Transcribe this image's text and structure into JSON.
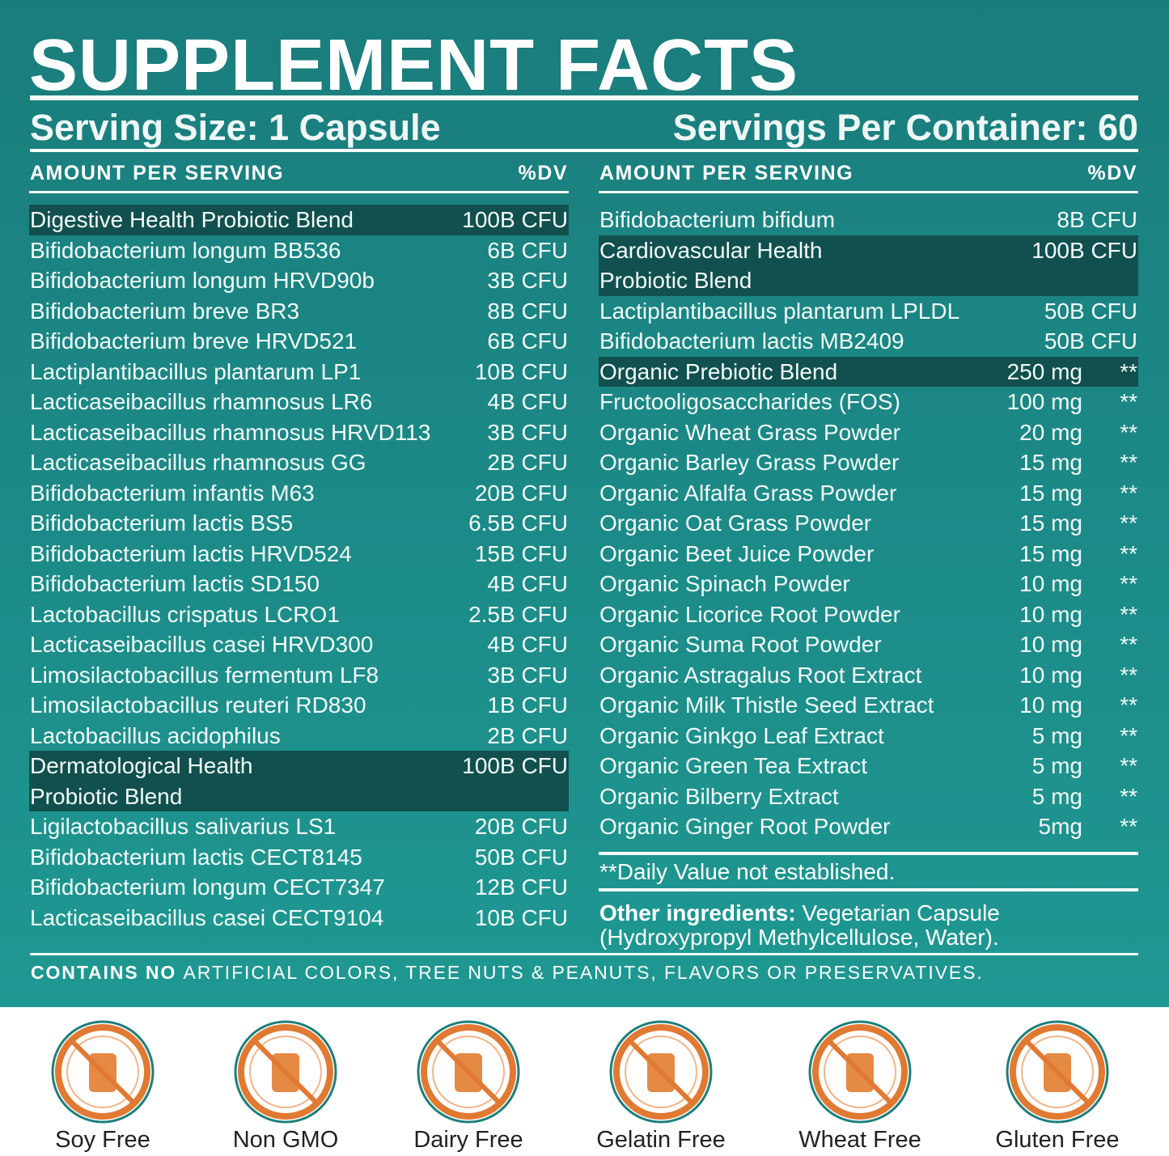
{
  "title": "SUPPLEMENT FACTS",
  "serving_size": "Serving Size: 1 Capsule",
  "servings_per_container": "Servings Per Container: 60",
  "left": {
    "header": [
      "AMOUNT PER SERVING",
      "%DV"
    ],
    "rows": [
      {
        "name": "Digestive Health Probiotic Blend",
        "amount": "100B CFU",
        "highlight": true
      },
      {
        "name": "Bifidobacterium longum BB536",
        "amount": "6B CFU"
      },
      {
        "name": "Bifidobacterium longum HRVD90b",
        "amount": "3B CFU"
      },
      {
        "name": "Bifidobacterium breve BR3",
        "amount": "8B CFU"
      },
      {
        "name": "Bifidobacterium breve HRVD521",
        "amount": "6B CFU"
      },
      {
        "name": "Lactiplantibacillus plantarum LP1",
        "amount": "10B CFU"
      },
      {
        "name": "Lacticaseibacillus rhamnosus LR6",
        "amount": "4B CFU"
      },
      {
        "name": "Lacticaseibacillus rhamnosus HRVD113",
        "amount": "3B CFU"
      },
      {
        "name": "Lacticaseibacillus rhamnosus GG",
        "amount": "2B CFU"
      },
      {
        "name": "Bifidobacterium infantis M63",
        "amount": "20B CFU"
      },
      {
        "name": "Bifidobacterium lactis BS5",
        "amount": "6.5B CFU"
      },
      {
        "name": "Bifidobacterium lactis HRVD524",
        "amount": "15B CFU"
      },
      {
        "name": "Bifidobacterium lactis SD150",
        "amount": "4B CFU"
      },
      {
        "name": "Lactobacillus crispatus LCRO1",
        "amount": "2.5B CFU"
      },
      {
        "name": "Lacticaseibacillus casei HRVD300",
        "amount": "4B CFU"
      },
      {
        "name": "Limosilactobacillus fermentum LF8",
        "amount": "3B CFU"
      },
      {
        "name": "Limosilactobacillus reuteri RD830",
        "amount": "1B CFU"
      },
      {
        "name": "Lactobacillus acidophilus",
        "amount": "2B CFU"
      },
      {
        "name": [
          "Dermatological Health",
          "Probiotic Blend"
        ],
        "amount": "100B CFU",
        "highlight": true
      },
      {
        "name": "Ligilactobacillus salivarius LS1",
        "amount": "20B CFU"
      },
      {
        "name": "Bifidobacterium lactis CECT8145",
        "amount": "50B CFU"
      },
      {
        "name": "Bifidobacterium longum CECT7347",
        "amount": "12B CFU"
      },
      {
        "name": "Lacticaseibacillus casei CECT9104",
        "amount": "10B CFU"
      }
    ]
  },
  "right": {
    "header": [
      "AMOUNT PER SERVING",
      "%DV"
    ],
    "rows": [
      {
        "name": "Bifidobacterium bifidum",
        "amount": "8B CFU"
      },
      {
        "name": [
          "Cardiovascular Health",
          "Probiotic Blend"
        ],
        "amount": "100B CFU",
        "highlight": true
      },
      {
        "name": "Lactiplantibacillus plantarum LPLDL",
        "amount": "50B CFU"
      },
      {
        "name": "Bifidobacterium lactis MB2409",
        "amount": "50B CFU"
      },
      {
        "name": "Organic Prebiotic Blend",
        "amount": "250 mg",
        "dv": "**",
        "highlight": true
      },
      {
        "name": "Fructooligosaccharides (FOS)",
        "amount": "100 mg",
        "dv": "**"
      },
      {
        "name": "Organic Wheat Grass Powder",
        "amount": "20 mg",
        "dv": "**"
      },
      {
        "name": "Organic Barley Grass Powder",
        "amount": "15 mg",
        "dv": "**"
      },
      {
        "name": "Organic Alfalfa Grass Powder",
        "amount": "15 mg",
        "dv": "**"
      },
      {
        "name": "Organic Oat Grass Powder",
        "amount": "15 mg",
        "dv": "**"
      },
      {
        "name": "Organic Beet Juice Powder",
        "amount": "15 mg",
        "dv": "**"
      },
      {
        "name": "Organic Spinach Powder",
        "amount": "10 mg",
        "dv": "**"
      },
      {
        "name": "Organic Licorice Root Powder",
        "amount": "10 mg",
        "dv": "**"
      },
      {
        "name": "Organic Suma Root Powder",
        "amount": "10 mg",
        "dv": "**"
      },
      {
        "name": "Organic Astragalus Root Extract",
        "amount": "10 mg",
        "dv": "**"
      },
      {
        "name": "Organic Milk Thistle Seed Extract",
        "amount": "10 mg",
        "dv": "**"
      },
      {
        "name": "Organic Ginkgo Leaf Extract",
        "amount": "5 mg",
        "dv": "**"
      },
      {
        "name": "Organic Green Tea Extract",
        "amount": "5 mg",
        "dv": "**"
      },
      {
        "name": "Organic Bilberry Extract",
        "amount": "5 mg",
        "dv": "**"
      },
      {
        "name": "Organic Ginger Root Powder",
        "amount": "5mg",
        "dv": "**"
      }
    ]
  },
  "footnote": "**Daily Value not established.",
  "other_ingredients": {
    "label": "Other ingredients:",
    "lines": [
      "Vegetarian Capsule",
      "(Hydroxypropyl Methylcellulose, Water)."
    ]
  },
  "contains": {
    "bold": "CONTAINS NO",
    "text": "ARTIFICIAL COLORS, TREE NUTS & PEANUTS, FLAVORS OR PRESERVATIVES."
  },
  "badges": [
    "Soy Free",
    "Non GMO",
    "Dairy Free",
    "Gelatin Free",
    "Wheat Free",
    "Gluten Free"
  ]
}
